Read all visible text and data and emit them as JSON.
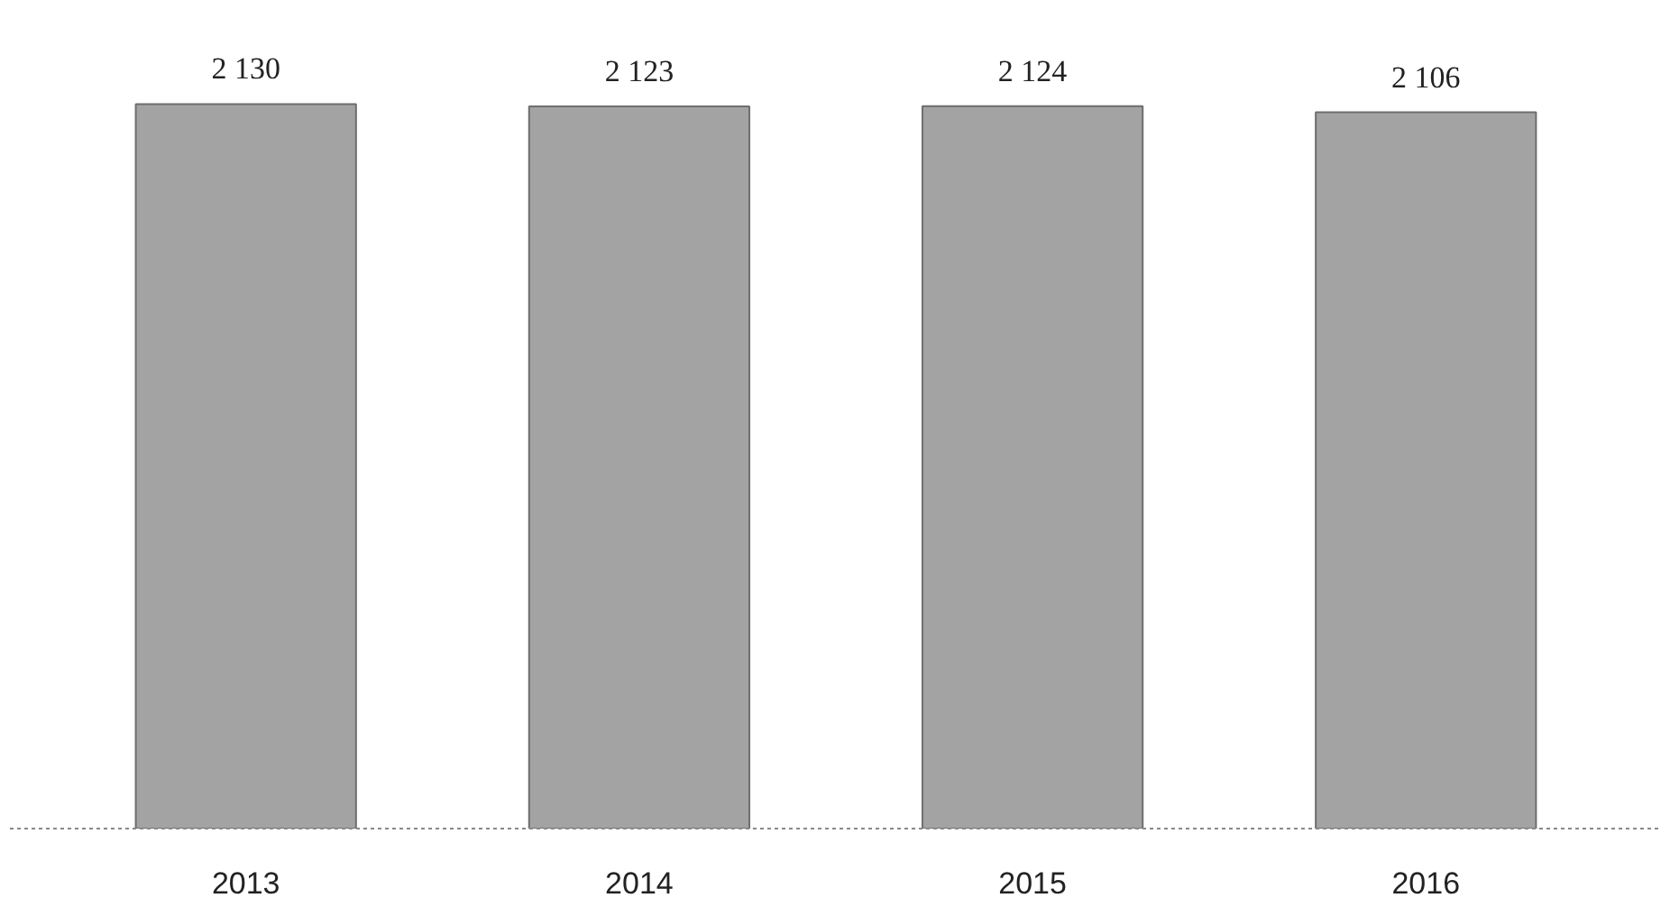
{
  "chart_data": {
    "type": "bar",
    "categories": [
      "2013",
      "2014",
      "2015",
      "2016"
    ],
    "values": [
      2130,
      2123,
      2124,
      2106
    ],
    "color": "#a3a3a3",
    "data_labels": true
  }
}
